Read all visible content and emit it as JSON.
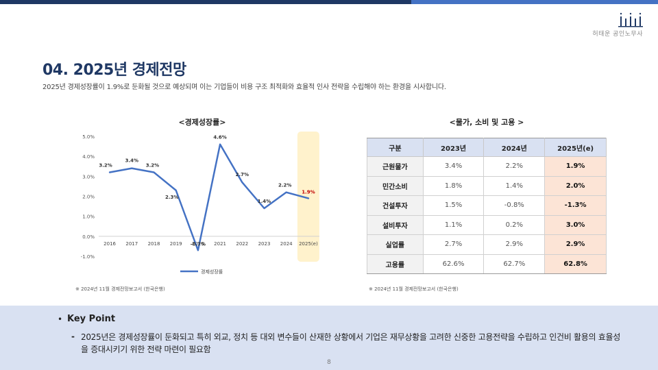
{
  "header": {
    "company": "허태운 공인노무사"
  },
  "page": {
    "title": "04. 2025년 경제전망",
    "subtitle": "2025년 경제성장률이 1.9%로 둔화될 것으로 예상되며 이는 기업들이 비용 구조 최적화와 효율적 인사 전략을 수립해야 하는 환경을 시사합니다.",
    "number": "8"
  },
  "chart_data": {
    "type": "line",
    "title": "<경제성장률>",
    "categories": [
      "2016",
      "2017",
      "2018",
      "2019",
      "2020",
      "2021",
      "2022",
      "2023",
      "2024",
      "2025(e)"
    ],
    "series": [
      {
        "name": "경제성장률",
        "values": [
          3.2,
          3.4,
          3.2,
          2.3,
          -0.7,
          4.6,
          2.7,
          1.4,
          2.2,
          1.9
        ],
        "labels": [
          "3.2%",
          "3.4%",
          "3.2%",
          "2.3%",
          "-0.7%",
          "4.6%",
          "2.7%",
          "1.4%",
          "2.2%",
          "1.9%"
        ]
      }
    ],
    "yticks": [
      "5.0%",
      "4.0%",
      "3.0%",
      "2.0%",
      "1.0%",
      "0.0%",
      "-1.0%"
    ],
    "ytick_values": [
      5,
      4,
      3,
      2,
      1,
      0,
      -1
    ],
    "ylim": [
      -1,
      5
    ],
    "highlight_category": "2025(e)",
    "legend_position": "bottom",
    "colors": {
      "line": "#4472c4",
      "highlight_band": "#fff2cc",
      "highlight_label": "#c00000"
    }
  },
  "chart_source": "※ 2024년 11월 경제전망보고서 (한국은행)",
  "table": {
    "title": "<물가, 소비 및 고용 >",
    "headers": [
      "구분",
      "2023년",
      "2024년",
      "2025년(e)"
    ],
    "rows": [
      {
        "label": "근원물가",
        "y2023": "3.4%",
        "y2024": "2.2%",
        "y2025": "1.9%"
      },
      {
        "label": "민간소비",
        "y2023": "1.8%",
        "y2024": "1.4%",
        "y2025": "2.0%"
      },
      {
        "label": "건설투자",
        "y2023": "1.5%",
        "y2024": "-0.8%",
        "y2025": "-1.3%"
      },
      {
        "label": "설비투자",
        "y2023": "1.1%",
        "y2024": "0.2%",
        "y2025": "3.0%"
      },
      {
        "label": "실업률",
        "y2023": "2.7%",
        "y2024": "2.9%",
        "y2025": "2.9%"
      },
      {
        "label": "고용률",
        "y2023": "62.6%",
        "y2024": "62.7%",
        "y2025": "62.8%"
      }
    ],
    "source": "※ 2024년 11월 경제전망보고서 (한국은행)"
  },
  "keypoint": {
    "bullet": "•",
    "heading": "Key Point",
    "dash": "-",
    "text": "2025년은 경제성장률이 둔화되고 특히 외교, 정치 등 대외 변수들이 산재한 상황에서 기업은 재무상황을 고려한 신중한 고용전략을 수립하고 인건비 활용의 효율성을 증대시키기 위한 전략 마련이 필요함"
  }
}
